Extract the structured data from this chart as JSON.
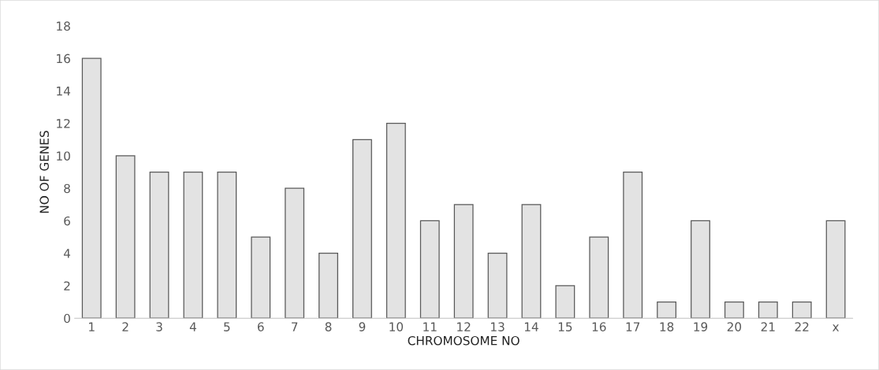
{
  "chart_data": {
    "type": "bar",
    "xlabel": "CHROMOSOME NO",
    "ylabel": "NO OF GENES",
    "categories": [
      "1",
      "2",
      "3",
      "4",
      "5",
      "6",
      "7",
      "8",
      "9",
      "10",
      "11",
      "12",
      "13",
      "14",
      "15",
      "16",
      "17",
      "18",
      "19",
      "20",
      "21",
      "22",
      "x"
    ],
    "values": [
      16,
      10,
      9,
      9,
      9,
      5,
      8,
      4,
      11,
      12,
      6,
      7,
      4,
      7,
      2,
      5,
      9,
      1,
      6,
      1,
      1,
      1,
      6
    ],
    "color": "#e3e3e3",
    "ylim": [
      0,
      18
    ],
    "yticks": [
      0,
      2,
      4,
      6,
      8,
      10,
      12,
      14,
      16,
      18
    ],
    "grid": false,
    "legend": false
  }
}
